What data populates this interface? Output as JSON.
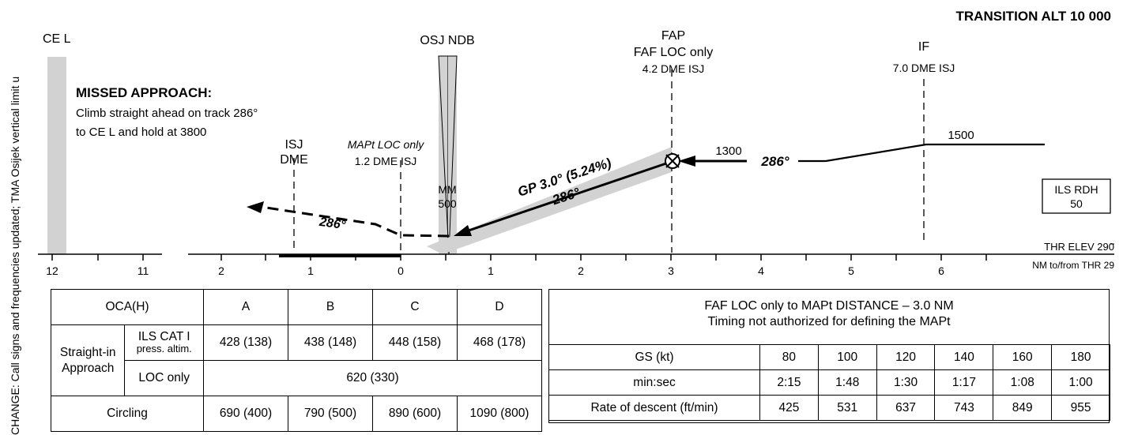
{
  "side_note": "CHANGE: Call signs and frequencies updated; TMA Osijek vertical limit u",
  "profile": {
    "transition_alt": "TRANSITION ALT 10 000",
    "cel_label": "CE L",
    "missed_title": "MISSED APPROACH:",
    "missed_line1": "Climb straight ahead on track 286°",
    "missed_line2": "to CE L and hold at 3800",
    "isj_line1": "ISJ",
    "isj_line2": "DME",
    "mapt_line1": "MAPt LOC only",
    "mapt_line2": "1.2 DME ISJ",
    "osj_label": "OSJ NDB",
    "mm_line1": "MM",
    "mm_line2": "500",
    "fap_line1": "FAP",
    "fap_line2": "FAF LOC only",
    "fap_line3": "4.2 DME ISJ",
    "if_line1": "IF",
    "if_line2": "7.0 DME ISJ",
    "alt_1300": "1300",
    "alt_1500": "1500",
    "track_inbound": "286°",
    "track_glide": "286°",
    "track_missed": "286°",
    "gp_label": "GP 3.0° (5.24%)",
    "rdh_line1": "ILS RDH",
    "rdh_line2": "50",
    "thr_elev": "THR ELEV 290",
    "nm_label": "NM to/from THR 29",
    "scale_left": [
      "12",
      "11"
    ],
    "scale_main": [
      "2",
      "1",
      "0",
      "1",
      "2",
      "3",
      "4",
      "5",
      "6"
    ]
  },
  "oca_table": {
    "header": "OCA(H)",
    "cats": [
      "A",
      "B",
      "C",
      "D"
    ],
    "straight_in_1": "Straight-in",
    "straight_in_2": "Approach",
    "ils_1": "ILS CAT I",
    "ils_2": "press. altim.",
    "ils_values": [
      "428 (138)",
      "438 (148)",
      "448 (158)",
      "468 (178)"
    ],
    "loc_label": "LOC only",
    "loc_value": "620 (330)",
    "circling_label": "Circling",
    "circling_values": [
      "690 (400)",
      "790 (500)",
      "890 (600)",
      "1090 (800)"
    ]
  },
  "timing_table": {
    "title1": "FAF LOC only to MAPt DISTANCE – 3.0 NM",
    "title2": "Timing not authorized for defining the MAPt",
    "rows": [
      {
        "label": "GS (kt)",
        "values": [
          "80",
          "100",
          "120",
          "140",
          "160",
          "180"
        ]
      },
      {
        "label": "min:sec",
        "values": [
          "2:15",
          "1:48",
          "1:30",
          "1:17",
          "1:08",
          "1:00"
        ]
      },
      {
        "label": "Rate of descent (ft/min)",
        "values": [
          "425",
          "531",
          "637",
          "743",
          "849",
          "955"
        ]
      }
    ]
  }
}
